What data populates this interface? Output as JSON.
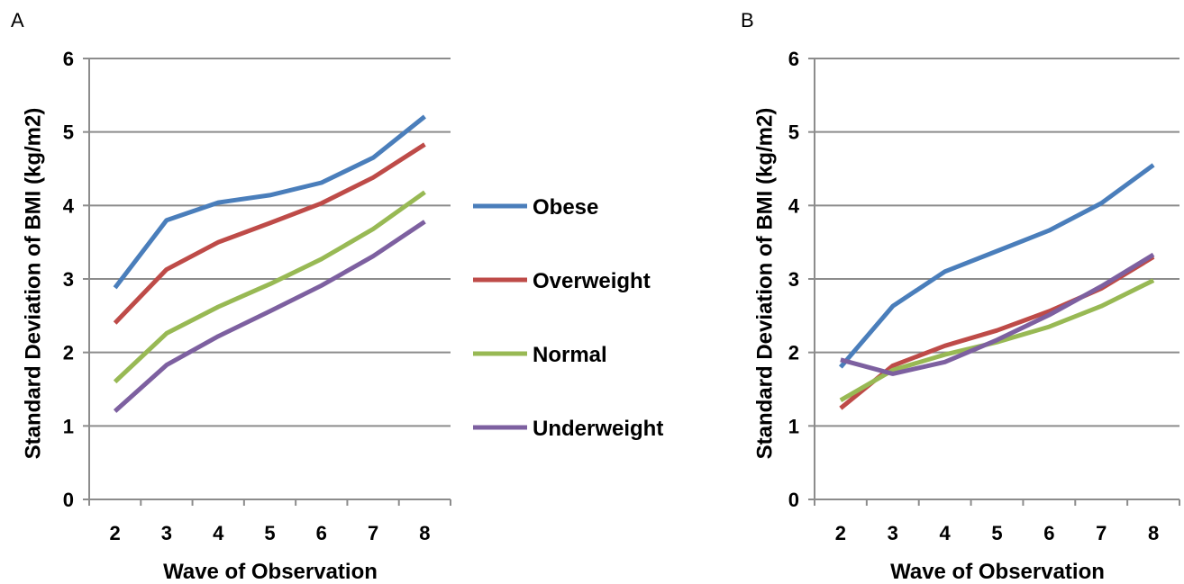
{
  "chart_data": [
    {
      "type": "line",
      "panel_label": "A",
      "xlabel": "Wave of Observation",
      "ylabel": "Standard Deviation of BMI (kg/m2)",
      "categories": [
        "2",
        "3",
        "4",
        "5",
        "6",
        "7",
        "8"
      ],
      "ylim": [
        0,
        6
      ],
      "yticks": [
        "0",
        "1",
        "2",
        "3",
        "4",
        "5",
        "6"
      ],
      "grid": "horizontal",
      "legend": "right",
      "series": [
        {
          "name": "Obese",
          "color": "#4a7ebb",
          "values": [
            2.88,
            3.8,
            4.04,
            4.14,
            4.31,
            4.65,
            5.21
          ]
        },
        {
          "name": "Overweight",
          "color": "#be4b48",
          "values": [
            2.4,
            3.13,
            3.5,
            3.76,
            4.03,
            4.38,
            4.83
          ]
        },
        {
          "name": "Normal",
          "color": "#98b954",
          "values": [
            1.6,
            2.26,
            2.62,
            2.93,
            3.27,
            3.68,
            4.18
          ]
        },
        {
          "name": "Underweight",
          "color": "#7d60a0",
          "values": [
            1.2,
            1.83,
            2.22,
            2.56,
            2.91,
            3.31,
            3.78
          ]
        }
      ]
    },
    {
      "type": "line",
      "panel_label": "B",
      "xlabel": "Wave of Observation",
      "ylabel": "Standard Deviation of BMI (kg/m2)",
      "categories": [
        "2",
        "3",
        "4",
        "5",
        "6",
        "7",
        "8"
      ],
      "ylim": [
        0,
        6
      ],
      "yticks": [
        "0",
        "1",
        "2",
        "3",
        "4",
        "5",
        "6"
      ],
      "grid": "horizontal",
      "legend": "none",
      "series": [
        {
          "name": "Obese",
          "color": "#4a7ebb",
          "values": [
            1.8,
            2.63,
            3.1,
            3.38,
            3.66,
            4.03,
            4.55
          ]
        },
        {
          "name": "Overweight",
          "color": "#be4b48",
          "values": [
            1.24,
            1.82,
            2.09,
            2.3,
            2.56,
            2.87,
            3.3
          ]
        },
        {
          "name": "Normal",
          "color": "#98b954",
          "values": [
            1.35,
            1.76,
            1.97,
            2.14,
            2.35,
            2.63,
            2.98
          ]
        },
        {
          "name": "Underweight",
          "color": "#7d60a0",
          "values": [
            1.9,
            1.71,
            1.87,
            2.17,
            2.51,
            2.9,
            3.33
          ]
        }
      ]
    }
  ]
}
